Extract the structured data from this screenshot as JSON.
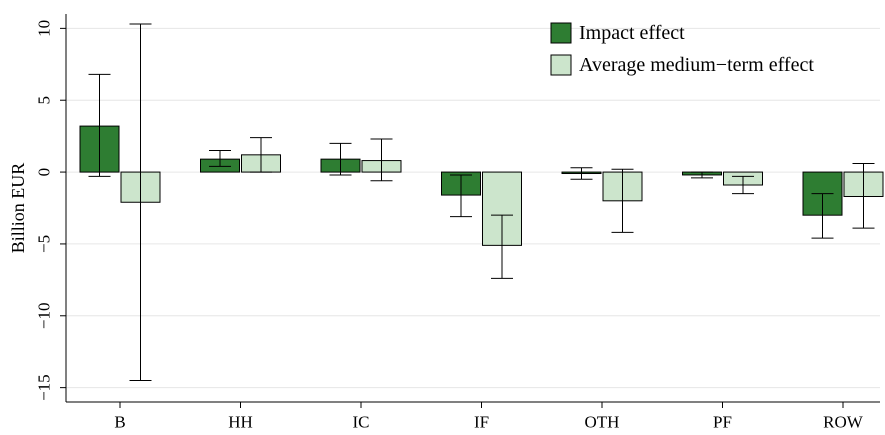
{
  "chart_data": {
    "type": "bar",
    "ylabel": "Billion EUR",
    "xlabel": "",
    "ylim": [
      -16,
      11
    ],
    "yticks": [
      10,
      5,
      0,
      -5,
      -10,
      -15
    ],
    "ytick_labels": [
      "10",
      "5",
      "0",
      "−5",
      "−10",
      "−15"
    ],
    "grid": true,
    "legend_position": "top-right",
    "categories": [
      "B",
      "HH",
      "IC",
      "IF",
      "OTH",
      "PF",
      "ROW"
    ],
    "series": [
      {
        "name": "Impact effect",
        "color": "#2e7d32",
        "values": [
          3.2,
          0.9,
          0.9,
          -1.6,
          -0.1,
          -0.2,
          -3.0
        ],
        "error_low": [
          -0.3,
          0.4,
          -0.2,
          -3.1,
          -0.5,
          -0.4,
          -4.6
        ],
        "error_high": [
          6.8,
          1.5,
          2.0,
          -0.2,
          0.3,
          0.0,
          -1.5
        ]
      },
      {
        "name": "Average medium−term effect",
        "color": "#cce5cc",
        "values": [
          -2.1,
          1.2,
          0.8,
          -5.1,
          -2.0,
          -0.9,
          -1.7
        ],
        "error_low": [
          -14.5,
          0.0,
          -0.6,
          -7.4,
          -4.2,
          -1.5,
          -3.9
        ],
        "error_high": [
          10.3,
          2.4,
          2.3,
          -3.0,
          0.2,
          -0.3,
          0.6
        ]
      }
    ]
  }
}
